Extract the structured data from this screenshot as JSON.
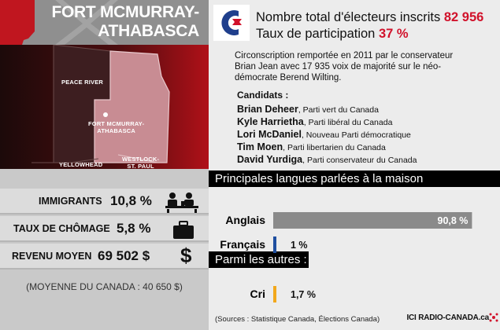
{
  "header": {
    "riding_name": "FORT MCMURRAY-\nATHABASCA"
  },
  "map": {
    "labels": {
      "peace_river": "PEACE RIVER",
      "riding": "FORT MCMURRAY-\nATHABASCA",
      "yellowhead": "YELLOWHEAD",
      "westlock": "WESTLOCK-\nST. PAUL"
    }
  },
  "stats": {
    "immigrants": {
      "label": "IMMIGRANTS",
      "value": "10,8 %"
    },
    "unemployment": {
      "label": "TAUX DE CHÔMAGE",
      "value": "5,8 %"
    },
    "income": {
      "label": "REVENU MOYEN",
      "value": "69 502 $"
    },
    "canada_average": "(MOYENNE DU CANADA : 40 650 $)"
  },
  "electors": {
    "registered_label": "Nombre total d'électeurs inscrits",
    "registered_value": "82 956",
    "turnout_label": "Taux de participation",
    "turnout_value": "37 %"
  },
  "riding_text": "Circonscription remportée en 2011 par le conservateur Brian Jean avec 17 935 voix de majorité sur le néo-démocrate Berend Wilting.",
  "candidates": {
    "heading": "Candidats :",
    "list": [
      {
        "name": "Brian Deheer",
        "party": ", Parti vert du Canada"
      },
      {
        "name": "Kyle Harrietha",
        "party": ", Parti libéral du Canada"
      },
      {
        "name": "Lori McDaniel",
        "party": ", Nouveau Parti démocratique"
      },
      {
        "name": "Tim Moen",
        "party": ", Parti libertarien du Canada"
      },
      {
        "name": "David Yurdiga",
        "party": ", Parti conservateur du Canada"
      }
    ]
  },
  "colors": {
    "conservative_red": "#d1122b",
    "english_bar": "#8a8a8a",
    "french_bar": "#1f4fa0",
    "cree_bar": "#f2a81c"
  },
  "chart_data": {
    "type": "bar",
    "title": "Principales langues parlées à la maison",
    "subtitle": "Parmi les autres :",
    "categories": [
      "Anglais",
      "Français",
      "Cri"
    ],
    "values": [
      90.8,
      1,
      1.7
    ],
    "value_labels": [
      "90,8 %",
      "1 %",
      "1,7 %"
    ],
    "xlim": [
      0,
      100
    ]
  },
  "footer": {
    "sources": "(Sources : Statistique Canada, Élections Canada)",
    "brand": "ICI RADIO-CANADA.ca"
  }
}
